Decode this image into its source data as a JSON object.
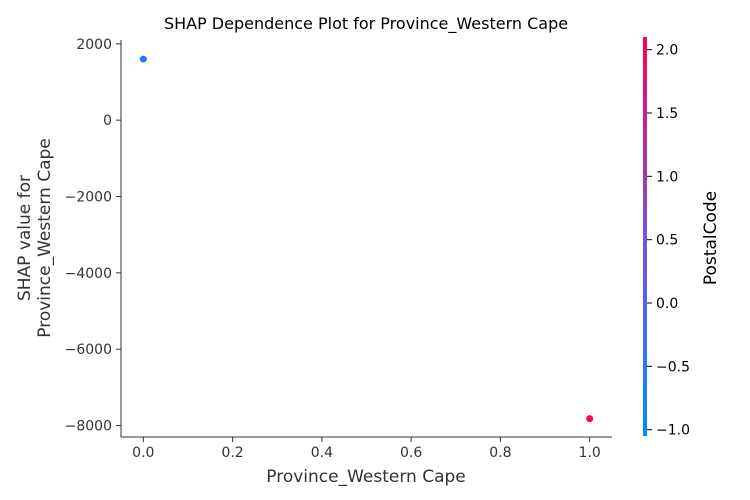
{
  "chart_data": {
    "type": "scatter",
    "title": "SHAP Dependence Plot for Province_Western Cape",
    "xlabel": "Province_Western Cape",
    "ylabel_lines": [
      "SHAP value for",
      "Province_Western Cape"
    ],
    "xlim": [
      -0.05,
      1.05
    ],
    "ylim": [
      -8300,
      2100
    ],
    "xticks": [
      0.0,
      0.2,
      0.4,
      0.6,
      0.8,
      1.0
    ],
    "xtick_labels": [
      "0.0",
      "0.2",
      "0.4",
      "0.6",
      "0.8",
      "1.0"
    ],
    "yticks": [
      2000,
      0,
      -2000,
      -4000,
      -6000,
      -8000
    ],
    "ytick_labels": [
      "2000",
      "0",
      "−2000",
      "−4000",
      "−6000",
      "−8000"
    ],
    "grid": false,
    "points": [
      {
        "x": 0.0,
        "y": 1600,
        "color_value": -0.5
      },
      {
        "x": 1.0,
        "y": -7820,
        "color_value": 2.0
      }
    ],
    "colorbar": {
      "label": "PostalCode",
      "range": [
        -1.05,
        2.1
      ],
      "ticks": [
        2.0,
        1.5,
        1.0,
        0.5,
        0.0,
        -0.5,
        -1.0
      ],
      "tick_labels": [
        "2.0",
        "1.5",
        "1.0",
        "0.5",
        "0.0",
        "−0.5",
        "−1.0"
      ],
      "colors": [
        "#008bfb",
        "#7853e0",
        "#ff0051"
      ]
    }
  }
}
